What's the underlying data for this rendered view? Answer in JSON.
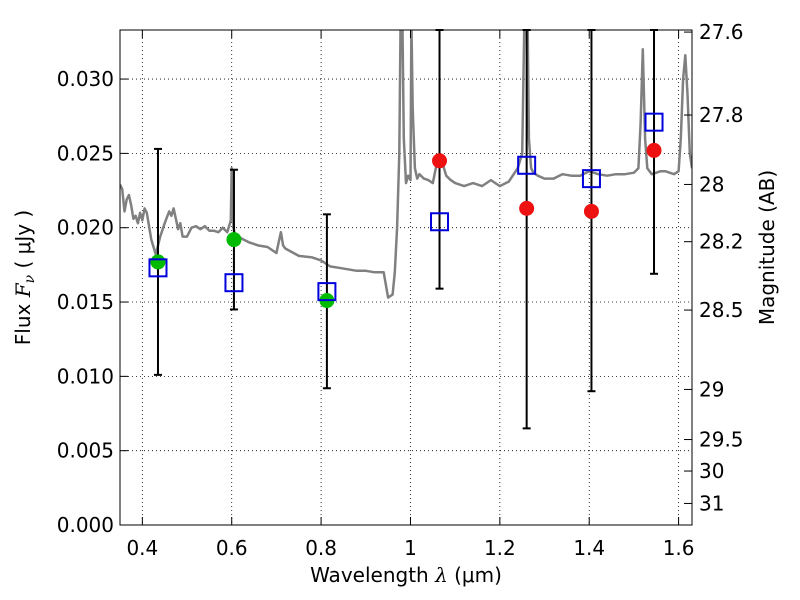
{
  "chart_data": {
    "type": "scatter",
    "xlabel_prefix": "Wavelength",
    "xlabel_symbol": "λ",
    "xlabel_unit": "(μm)",
    "ylabel_prefix": "Flux",
    "ylabel_symbol": "F",
    "ylabel_subscript": "ν",
    "ylabel_unit": "( μJy )",
    "y2label": "Magnitude (AB)",
    "xlim": [
      0.35,
      1.63
    ],
    "ylim": [
      0.0,
      0.0333
    ],
    "grid": true,
    "x_ticks": [
      0.4,
      0.6,
      0.8,
      1.0,
      1.2,
      1.4,
      1.6
    ],
    "x_tick_labels": [
      "0.4",
      "0.6",
      "0.8",
      "1",
      "1.2",
      "1.4",
      "1.6"
    ],
    "y_ticks": [
      0.0,
      0.005,
      0.01,
      0.015,
      0.02,
      0.025,
      0.03
    ],
    "y_tick_labels": [
      "0.000",
      "0.005",
      "0.010",
      "0.015",
      "0.020",
      "0.025",
      "0.030"
    ],
    "y2_ticks": [
      {
        "label": "27.6",
        "flux": 0.03316
      },
      {
        "label": "27.8",
        "flux": 0.02758
      },
      {
        "label": "28",
        "flux": 0.02291
      },
      {
        "label": "28.2",
        "flux": 0.01906
      },
      {
        "label": "28.5",
        "flux": 0.01446
      },
      {
        "label": "29",
        "flux": 0.00912
      },
      {
        "label": "29.5",
        "flux": 0.00575
      },
      {
        "label": "30",
        "flux": 0.00363
      },
      {
        "label": "31",
        "flux": 0.00145
      }
    ],
    "colors": {
      "template": "#808080",
      "observed_optical": "#00bb00",
      "observed_nir": "#ee1111",
      "model": "#0000dd",
      "errorbar": "#000000"
    },
    "series": [
      {
        "name": "model spectrum",
        "kind": "line",
        "x": [
          0.35,
          0.355,
          0.36,
          0.365,
          0.37,
          0.375,
          0.38,
          0.385,
          0.39,
          0.395,
          0.4,
          0.405,
          0.41,
          0.42,
          0.43,
          0.44,
          0.45,
          0.455,
          0.46,
          0.465,
          0.47,
          0.48,
          0.485,
          0.49,
          0.5,
          0.51,
          0.52,
          0.53,
          0.54,
          0.55,
          0.56,
          0.57,
          0.58,
          0.59,
          0.598,
          0.6,
          0.602,
          0.604,
          0.606,
          0.61,
          0.62,
          0.64,
          0.66,
          0.68,
          0.7,
          0.705,
          0.71,
          0.715,
          0.72,
          0.75,
          0.78,
          0.8,
          0.82,
          0.84,
          0.86,
          0.88,
          0.9,
          0.92,
          0.94,
          0.95,
          0.96,
          0.965,
          0.97,
          0.975,
          0.978,
          0.98,
          0.982,
          0.985,
          0.99,
          0.995,
          1.0,
          1.002,
          1.005,
          1.01,
          1.015,
          1.02,
          1.03,
          1.04,
          1.05,
          1.06,
          1.07,
          1.08,
          1.09,
          1.1,
          1.12,
          1.14,
          1.16,
          1.18,
          1.2,
          1.22,
          1.24,
          1.25,
          1.255,
          1.258,
          1.262,
          1.265,
          1.27,
          1.275,
          1.28,
          1.285,
          1.3,
          1.32,
          1.34,
          1.36,
          1.38,
          1.4,
          1.42,
          1.44,
          1.46,
          1.48,
          1.5,
          1.51,
          1.515,
          1.52,
          1.525,
          1.53,
          1.54,
          1.55,
          1.56,
          1.57,
          1.58,
          1.59,
          1.6,
          1.605,
          1.61,
          1.615,
          1.62,
          1.625,
          1.63
        ],
        "y": [
          0.0229,
          0.0226,
          0.0211,
          0.0219,
          0.0222,
          0.0215,
          0.0206,
          0.0208,
          0.0203,
          0.021,
          0.0205,
          0.0213,
          0.021,
          0.0192,
          0.0182,
          0.0194,
          0.0203,
          0.0207,
          0.0211,
          0.0208,
          0.0213,
          0.0199,
          0.0203,
          0.0194,
          0.0194,
          0.02,
          0.0201,
          0.0199,
          0.0201,
          0.0198,
          0.0198,
          0.0197,
          0.02,
          0.0197,
          0.0205,
          0.024,
          0.023,
          0.02,
          0.0197,
          0.0195,
          0.0193,
          0.019,
          0.0188,
          0.0187,
          0.0183,
          0.019,
          0.0197,
          0.0188,
          0.0186,
          0.0181,
          0.018,
          0.0178,
          0.0174,
          0.0173,
          0.0172,
          0.0171,
          0.0171,
          0.017,
          0.017,
          0.0153,
          0.0155,
          0.017,
          0.02,
          0.025,
          0.034,
          0.036,
          0.034,
          0.026,
          0.023,
          0.0235,
          0.0232,
          0.034,
          0.028,
          0.024,
          0.0233,
          0.0236,
          0.0233,
          0.0232,
          0.023,
          0.0245,
          0.0245,
          0.0235,
          0.0232,
          0.023,
          0.0228,
          0.023,
          0.0228,
          0.0232,
          0.0228,
          0.0231,
          0.024,
          0.025,
          0.034,
          0.036,
          0.034,
          0.026,
          0.024,
          0.0237,
          0.0236,
          0.0235,
          0.0233,
          0.0233,
          0.0236,
          0.0235,
          0.0235,
          0.0238,
          0.0236,
          0.0235,
          0.0236,
          0.0236,
          0.0237,
          0.024,
          0.027,
          0.032,
          0.026,
          0.024,
          0.0236,
          0.0237,
          0.0238,
          0.0238,
          0.0237,
          0.0236,
          0.0238,
          0.026,
          0.03,
          0.0316,
          0.029,
          0.025,
          0.024
        ]
      },
      {
        "name": "observed (optical)",
        "kind": "points",
        "x": [
          0.435,
          0.605,
          0.813
        ],
        "y": [
          0.0177,
          0.0192,
          0.0151
        ],
        "err_low": [
          0.0101,
          0.0145,
          0.0092
        ],
        "err_high": [
          0.0253,
          0.0239,
          0.0209
        ]
      },
      {
        "name": "observed (near-IR)",
        "kind": "points",
        "x": [
          1.065,
          1.26,
          1.405,
          1.545
        ],
        "y": [
          0.0245,
          0.0213,
          0.0211,
          0.0252
        ],
        "err_low": [
          0.0159,
          0.0065,
          0.009,
          0.0169
        ],
        "err_high": [
          0.0334,
          0.0334,
          0.0334,
          0.0334
        ]
      },
      {
        "name": "model photometry",
        "kind": "squares",
        "x": [
          0.435,
          0.605,
          0.813,
          1.065,
          1.26,
          1.405,
          1.545
        ],
        "y": [
          0.0173,
          0.0163,
          0.0157,
          0.0204,
          0.0242,
          0.0233,
          0.0271
        ]
      }
    ]
  }
}
